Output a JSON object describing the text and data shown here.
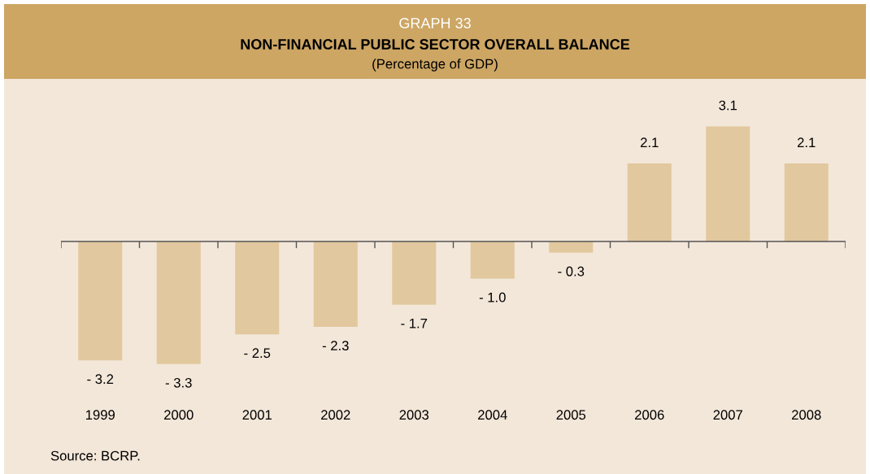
{
  "chart_data": {
    "type": "bar",
    "title": "GRAPH 33",
    "subtitle": "NON-FINANCIAL PUBLIC SECTOR OVERALL BALANCE",
    "annotations": [
      "(Percentage of GDP)",
      "Source: BCRP."
    ],
    "categories": [
      "1999",
      "2000",
      "2001",
      "2002",
      "2003",
      "2004",
      "2005",
      "2006",
      "2007",
      "2008"
    ],
    "values": [
      -3.2,
      -3.3,
      -2.5,
      -2.3,
      -1.7,
      -1.0,
      -0.3,
      2.1,
      3.1,
      2.1
    ],
    "value_labels": [
      "- 3.2",
      "- 3.3",
      "- 2.5",
      "- 2.3",
      "- 1.7",
      "- 1.0",
      "- 0.3",
      "2.1",
      "3.1",
      "2.1"
    ],
    "color": "#e2c89e"
  }
}
